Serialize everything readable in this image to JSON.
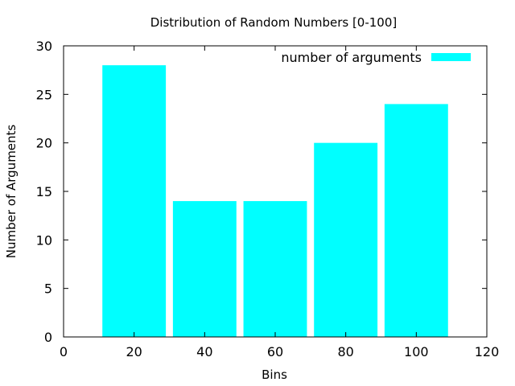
{
  "chart_data": {
    "type": "bar",
    "title": "Distribution of Random Numbers [0-100]",
    "xlabel": "Bins",
    "ylabel": "Number of Arguments",
    "xlim": [
      0,
      120
    ],
    "ylim": [
      0,
      30
    ],
    "x_ticks": [
      0,
      20,
      40,
      60,
      80,
      100,
      120
    ],
    "y_ticks": [
      0,
      5,
      10,
      15,
      20,
      25,
      30
    ],
    "bar_width": 18,
    "bar_color": "#00ffff",
    "grid": false,
    "legend_position": "top-right",
    "series": [
      {
        "name": "number of arguments",
        "x": [
          20,
          40,
          60,
          80,
          100
        ],
        "values": [
          28,
          14,
          14,
          20,
          24
        ]
      }
    ]
  }
}
